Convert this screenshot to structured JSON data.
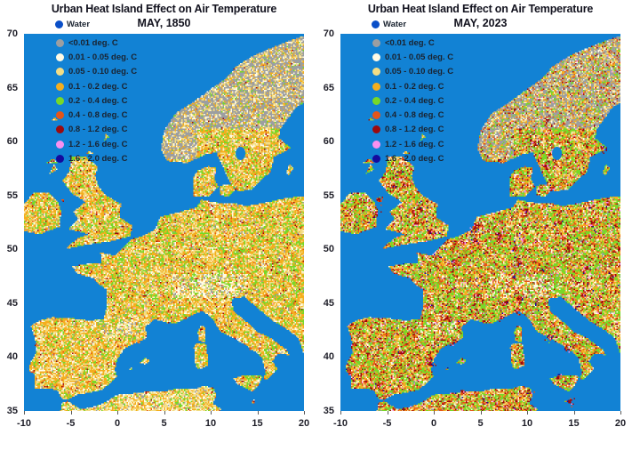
{
  "figure": {
    "panels": [
      {
        "title": "Urban Heat Island Effect on Air Temperature",
        "subtitle": "MAY, 1850"
      },
      {
        "title": "Urban Heat Island Effect on Air Temperature",
        "subtitle": "MAY, 2023"
      }
    ],
    "legend": {
      "water_label": "Water",
      "water_color": "#0a4fc8",
      "items": [
        {
          "label": "<0.01 deg. C",
          "color": "#9c9ea1"
        },
        {
          "label": "0.01 - 0.05 deg. C",
          "color": "#fffbe6"
        },
        {
          "label": "0.05 - 0.10 deg. C",
          "color": "#f3dd85"
        },
        {
          "label": "0.1 - 0.2 deg. C",
          "color": "#f4ae1e"
        },
        {
          "label": "0.2 - 0.4 deg. C",
          "color": "#77d828"
        },
        {
          "label": "0.4 - 0.8 deg. C",
          "color": "#e4561a"
        },
        {
          "label": "0.8 - 1.2 deg. C",
          "color": "#9c0a0e"
        },
        {
          "label": "1.2 - 1.6 deg. C",
          "color": "#fa90f0"
        },
        {
          "label": "1.6 - 2.0 deg. C",
          "color": "#140a9e"
        }
      ]
    },
    "axes": {
      "x_ticks": [
        "-10",
        "-5",
        "0",
        "5",
        "10",
        "15",
        "20"
      ],
      "y_ticks": [
        "70",
        "65",
        "60",
        "55",
        "50",
        "45",
        "40",
        "35"
      ]
    },
    "map_colors": {
      "sea": "#1282d4"
    }
  },
  "chart_data": [
    {
      "type": "heatmap",
      "title": "Urban Heat Island Effect on Air Temperature",
      "subtitle": "MAY, 1850",
      "region": "Europe",
      "xlim": [
        -10,
        20
      ],
      "ylim": [
        35,
        70
      ],
      "x_ticks": [
        -10,
        -5,
        0,
        5,
        10,
        15,
        20
      ],
      "y_ticks": [
        70,
        65,
        60,
        55,
        50,
        45,
        40,
        35
      ],
      "legend_bins": [
        "Water",
        "<0.01 deg. C",
        "0.01 - 0.05 deg. C",
        "0.05 - 0.10 deg. C",
        "0.1 - 0.2 deg. C",
        "0.2 - 0.4 deg. C",
        "0.4 - 0.8 deg. C",
        "0.8 - 1.2 deg. C",
        "1.2 - 1.6 deg. C",
        "1.6 - 2.0 deg. C"
      ],
      "dominant_bins": [
        "0.05 - 0.10 deg. C",
        "0.1 - 0.2 deg. C",
        "0.2 - 0.4 deg. C"
      ],
      "notes_visible_pattern": "Mostly amber/pale-yellow land, green patches, gray Scandinavian interior, sparse small red city dots"
    },
    {
      "type": "heatmap",
      "title": "Urban Heat Island Effect on Air Temperature",
      "subtitle": "MAY, 2023",
      "region": "Europe",
      "xlim": [
        -10,
        20
      ],
      "ylim": [
        35,
        70
      ],
      "x_ticks": [
        -10,
        -5,
        0,
        5,
        10,
        15,
        20
      ],
      "y_ticks": [
        70,
        65,
        60,
        55,
        50,
        45,
        40,
        35
      ],
      "legend_bins": [
        "Water",
        "<0.01 deg. C",
        "0.01 - 0.05 deg. C",
        "0.05 - 0.10 deg. C",
        "0.1 - 0.2 deg. C",
        "0.2 - 0.4 deg. C",
        "0.4 - 0.8 deg. C",
        "0.8 - 1.2 deg. C",
        "1.2 - 1.6 deg. C",
        "1.6 - 2.0 deg. C"
      ],
      "dominant_bins": [
        "0.1 - 0.2 deg. C",
        "0.2 - 0.4 deg. C",
        "0.4 - 0.8 deg. C",
        "0.8 - 1.2 deg. C"
      ],
      "notes_visible_pattern": "Dense red/dark-red urban clusters over green/amber land, pink and navy specks at major cities, gray Scandinavian interior"
    }
  ]
}
